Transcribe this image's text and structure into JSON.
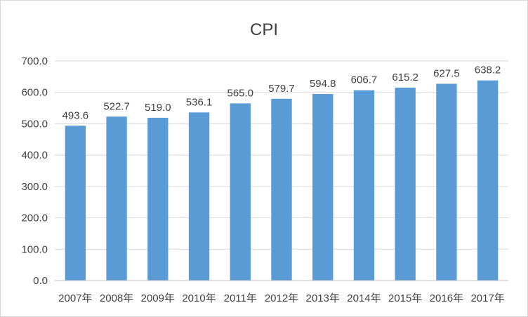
{
  "chart_data": {
    "type": "bar",
    "title": "CPI",
    "xlabel": "",
    "ylabel": "",
    "categories": [
      "2007年",
      "2008年",
      "2009年",
      "2010年",
      "2011年",
      "2012年",
      "2013年",
      "2014年",
      "2015年",
      "2016年",
      "2017年"
    ],
    "values": [
      493.6,
      522.7,
      519.0,
      536.1,
      565.0,
      579.7,
      594.8,
      606.7,
      615.2,
      627.5,
      638.2
    ],
    "data_labels": [
      "493.6",
      "522.7",
      "519.0",
      "536.1",
      "565.0",
      "579.7",
      "594.8",
      "606.7",
      "615.2",
      "627.5",
      "638.2"
    ],
    "ylim": [
      0,
      700
    ],
    "yticks": [
      0,
      100,
      200,
      300,
      400,
      500,
      600,
      700
    ],
    "ytick_labels": [
      "0.0",
      "100.0",
      "200.0",
      "300.0",
      "400.0",
      "500.0",
      "600.0",
      "700.0"
    ],
    "grid": true,
    "legend": "none",
    "bar_color": "#5b9bd5",
    "grid_color": "#d9d9d9",
    "axis_color": "#bfbfbf"
  }
}
